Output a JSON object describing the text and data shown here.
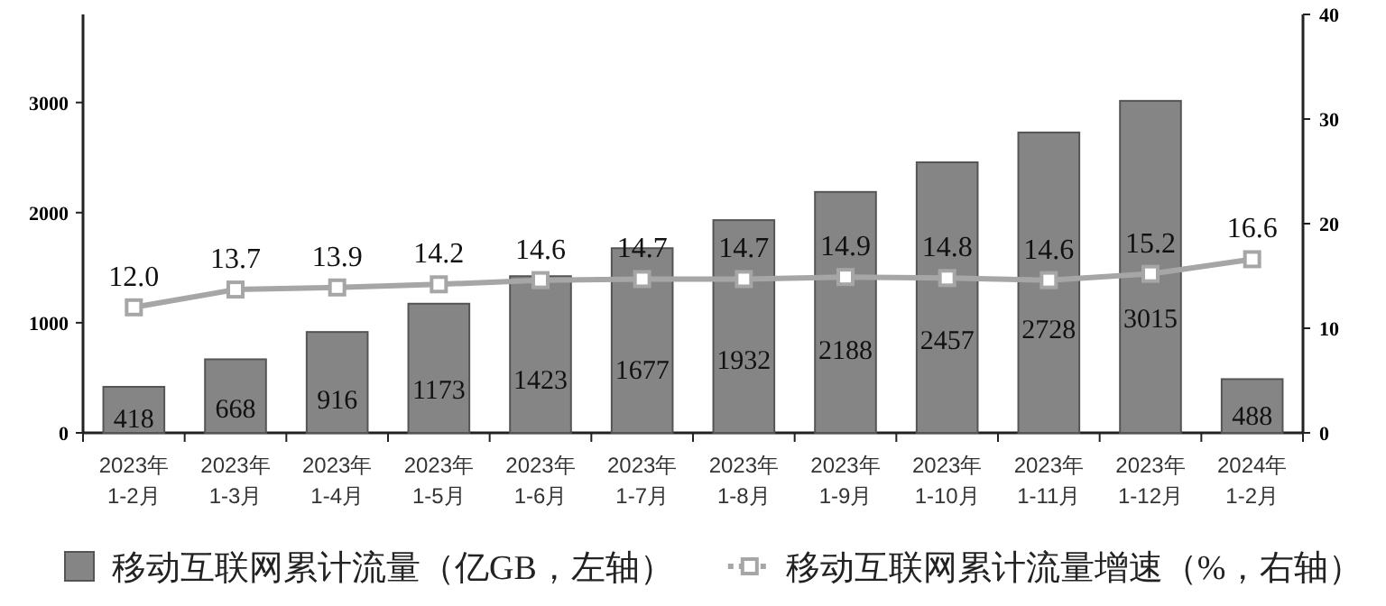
{
  "chart_data": {
    "type": "bar",
    "categories": [
      "2023年\n1-2月",
      "2023年\n1-3月",
      "2023年\n1-4月",
      "2023年\n1-5月",
      "2023年\n1-6月",
      "2023年\n1-7月",
      "2023年\n1-8月",
      "2023年\n1-9月",
      "2023年\n1-10月",
      "2023年\n1-11月",
      "2023年\n1-12月",
      "2024年\n1-2月"
    ],
    "series": [
      {
        "name": "移动互联网累计流量（亿GB，左轴）",
        "color": "#858585",
        "values": [
          418,
          668,
          916,
          1173,
          1423,
          1677,
          1932,
          2188,
          2457,
          2728,
          3015,
          488
        ]
      },
      {
        "name": "移动互联网累计流量增速（%，右轴）",
        "type": "line",
        "axis": "y2",
        "color": "#a6a6a6",
        "marker": "square",
        "values": [
          12.0,
          13.7,
          13.9,
          14.2,
          14.6,
          14.7,
          14.7,
          14.9,
          14.8,
          14.6,
          15.2,
          16.6
        ],
        "value_labels": [
          "12.0",
          "13.7",
          "13.9",
          "14.2",
          "14.6",
          "14.7",
          "14.7",
          "14.9",
          "14.8",
          "14.6",
          "15.2",
          "16.6"
        ]
      }
    ],
    "ylim": [
      0,
      3800
    ],
    "yticks": [
      0,
      1000,
      2000,
      3000
    ],
    "y2lim": [
      0,
      40
    ],
    "y2ticks": [
      0,
      10,
      20,
      30,
      40
    ],
    "data_labels": true,
    "grid": false,
    "legend": "bottom"
  }
}
